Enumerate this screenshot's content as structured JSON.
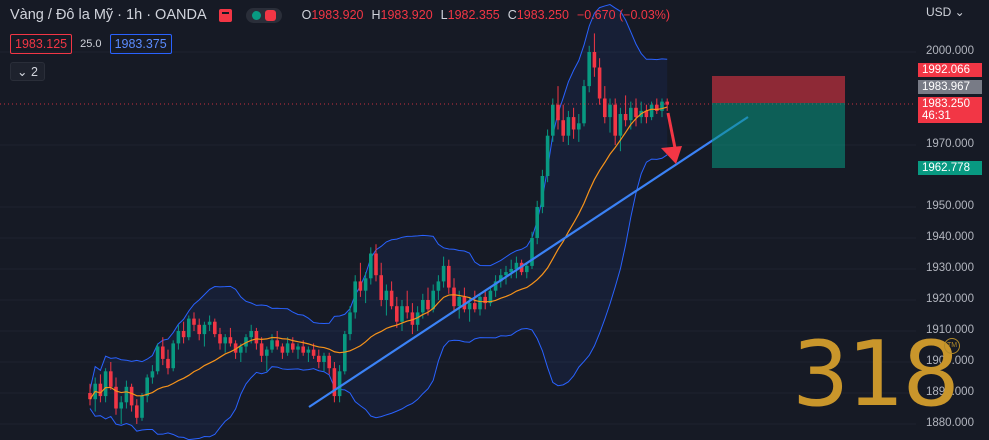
{
  "header": {
    "symbol": "Vàng / Đô la Mỹ · 1h · OANDA",
    "ohlc": [
      {
        "key": "O",
        "value": "1983.920"
      },
      {
        "key": "H",
        "value": "1983.920"
      },
      {
        "key": "L",
        "value": "1982.355"
      },
      {
        "key": "C",
        "value": "1983.250"
      }
    ],
    "change": "−0.670 (−0.03%)"
  },
  "quote": {
    "sell": "1983.125",
    "spread": "25.0",
    "buy": "1983.375"
  },
  "indicators_label": "2",
  "currency": "USD",
  "colors": {
    "up": "#089981",
    "down": "#f23645",
    "band": "#2962ff",
    "ma": "#f7931a",
    "trend": "#3b82f6"
  },
  "watermark": "318",
  "price_labels": [
    {
      "value": "1992.066",
      "color": "#f23645"
    },
    {
      "value": "1983.967",
      "color": "#787b86"
    },
    {
      "value": "1983.250",
      "color": "#f23645",
      "countdown": "46:31"
    },
    {
      "value": "1962.778",
      "color": "#089981"
    }
  ],
  "chart_data": {
    "type": "candlestick",
    "y_ticks": [
      "2000.000",
      "1970.000",
      "1950.000",
      "1940.000",
      "1930.000",
      "1920.000",
      "1910.000",
      "1900.000",
      "1890.000",
      "1880.000"
    ],
    "ylim": [
      1878,
      2007
    ],
    "candles_note": "OHLC values approximated",
    "candles": [
      [
        1890,
        1893,
        1886,
        1888
      ],
      [
        1888,
        1895,
        1884,
        1893
      ],
      [
        1893,
        1896,
        1887,
        1889
      ],
      [
        1889,
        1898,
        1887,
        1897
      ],
      [
        1897,
        1900,
        1891,
        1892
      ],
      [
        1892,
        1895,
        1883,
        1885
      ],
      [
        1885,
        1889,
        1880,
        1887
      ],
      [
        1887,
        1894,
        1885,
        1892
      ],
      [
        1892,
        1893,
        1884,
        1886
      ],
      [
        1886,
        1888,
        1880,
        1882
      ],
      [
        1882,
        1890,
        1881,
        1889
      ],
      [
        1889,
        1896,
        1887,
        1895
      ],
      [
        1895,
        1899,
        1893,
        1897
      ],
      [
        1897,
        1906,
        1896,
        1905
      ],
      [
        1905,
        1908,
        1899,
        1901
      ],
      [
        1901,
        1904,
        1896,
        1898
      ],
      [
        1898,
        1907,
        1897,
        1906
      ],
      [
        1906,
        1912,
        1904,
        1910
      ],
      [
        1910,
        1913,
        1906,
        1908
      ],
      [
        1908,
        1915,
        1907,
        1914
      ],
      [
        1914,
        1916,
        1910,
        1912
      ],
      [
        1912,
        1914,
        1907,
        1909
      ],
      [
        1909,
        1913,
        1905,
        1912
      ],
      [
        1912,
        1915,
        1910,
        1913
      ],
      [
        1913,
        1914,
        1908,
        1909
      ],
      [
        1909,
        1911,
        1904,
        1906
      ],
      [
        1906,
        1909,
        1903,
        1908
      ],
      [
        1908,
        1911,
        1905,
        1906
      ],
      [
        1906,
        1907,
        1901,
        1903
      ],
      [
        1903,
        1906,
        1900,
        1905
      ],
      [
        1905,
        1909,
        1903,
        1908
      ],
      [
        1908,
        1912,
        1906,
        1910
      ],
      [
        1910,
        1911,
        1904,
        1906
      ],
      [
        1906,
        1908,
        1900,
        1902
      ],
      [
        1902,
        1905,
        1897,
        1904
      ],
      [
        1904,
        1909,
        1903,
        1907
      ],
      [
        1907,
        1910,
        1904,
        1905
      ],
      [
        1905,
        1906,
        1901,
        1903
      ],
      [
        1903,
        1908,
        1902,
        1906
      ],
      [
        1906,
        1908,
        1903,
        1904
      ],
      [
        1904,
        1906,
        1901,
        1905
      ],
      [
        1905,
        1907,
        1902,
        1903
      ],
      [
        1903,
        1905,
        1900,
        1904
      ],
      [
        1904,
        1906,
        1901,
        1902
      ],
      [
        1902,
        1904,
        1898,
        1900
      ],
      [
        1900,
        1903,
        1897,
        1902
      ],
      [
        1902,
        1903,
        1896,
        1898
      ],
      [
        1898,
        1900,
        1887,
        1889
      ],
      [
        1889,
        1899,
        1887,
        1897
      ],
      [
        1897,
        1910,
        1896,
        1909
      ],
      [
        1909,
        1918,
        1907,
        1916
      ],
      [
        1916,
        1928,
        1914,
        1926
      ],
      [
        1926,
        1932,
        1921,
        1923
      ],
      [
        1923,
        1929,
        1919,
        1927
      ],
      [
        1927,
        1937,
        1925,
        1935
      ],
      [
        1935,
        1938,
        1926,
        1928
      ],
      [
        1928,
        1932,
        1918,
        1920
      ],
      [
        1920,
        1925,
        1915,
        1923
      ],
      [
        1923,
        1926,
        1917,
        1918
      ],
      [
        1918,
        1921,
        1911,
        1913
      ],
      [
        1913,
        1920,
        1910,
        1918
      ],
      [
        1918,
        1923,
        1914,
        1916
      ],
      [
        1916,
        1919,
        1909,
        1912
      ],
      [
        1912,
        1918,
        1910,
        1916
      ],
      [
        1916,
        1922,
        1914,
        1920
      ],
      [
        1920,
        1924,
        1915,
        1917
      ],
      [
        1917,
        1925,
        1916,
        1923
      ],
      [
        1923,
        1928,
        1920,
        1926
      ],
      [
        1926,
        1934,
        1924,
        1931
      ],
      [
        1931,
        1933,
        1922,
        1924
      ],
      [
        1924,
        1927,
        1916,
        1918
      ],
      [
        1918,
        1923,
        1914,
        1921
      ],
      [
        1921,
        1924,
        1916,
        1917
      ],
      [
        1917,
        1921,
        1913,
        1919
      ],
      [
        1919,
        1923,
        1916,
        1917
      ],
      [
        1917,
        1922,
        1915,
        1921
      ],
      [
        1921,
        1923,
        1917,
        1919
      ],
      [
        1919,
        1924,
        1918,
        1923
      ],
      [
        1923,
        1928,
        1921,
        1926
      ],
      [
        1926,
        1930,
        1924,
        1928
      ],
      [
        1928,
        1931,
        1925,
        1929
      ],
      [
        1929,
        1933,
        1927,
        1930
      ],
      [
        1930,
        1934,
        1927,
        1932
      ],
      [
        1932,
        1933,
        1928,
        1929
      ],
      [
        1929,
        1932,
        1927,
        1931
      ],
      [
        1931,
        1942,
        1930,
        1940
      ],
      [
        1940,
        1952,
        1938,
        1950
      ],
      [
        1950,
        1962,
        1948,
        1960
      ],
      [
        1960,
        1975,
        1958,
        1973
      ],
      [
        1973,
        1985,
        1971,
        1983
      ],
      [
        1983,
        1989,
        1975,
        1978
      ],
      [
        1978,
        1983,
        1971,
        1973
      ],
      [
        1973,
        1981,
        1970,
        1979
      ],
      [
        1979,
        1982,
        1972,
        1975
      ],
      [
        1975,
        1980,
        1971,
        1977
      ],
      [
        1977,
        1991,
        1976,
        1989
      ],
      [
        1989,
        2002,
        1987,
        2000
      ],
      [
        2000,
        2006,
        1992,
        1995
      ],
      [
        1995,
        1998,
        1983,
        1985
      ],
      [
        1985,
        1989,
        1977,
        1979
      ],
      [
        1979,
        1985,
        1974,
        1983
      ],
      [
        1983,
        1985,
        1970,
        1973
      ],
      [
        1973,
        1982,
        1968,
        1980
      ],
      [
        1980,
        1986,
        1976,
        1978
      ],
      [
        1978,
        1984,
        1975,
        1982
      ],
      [
        1982,
        1985,
        1976,
        1979
      ],
      [
        1979,
        1984,
        1977,
        1981
      ],
      [
        1981,
        1983,
        1977,
        1979
      ],
      [
        1979,
        1984,
        1978,
        1983
      ],
      [
        1983,
        1985,
        1980,
        1981
      ],
      [
        1981,
        1985,
        1979,
        1984
      ],
      [
        1984,
        1985,
        1981,
        1983
      ]
    ]
  }
}
